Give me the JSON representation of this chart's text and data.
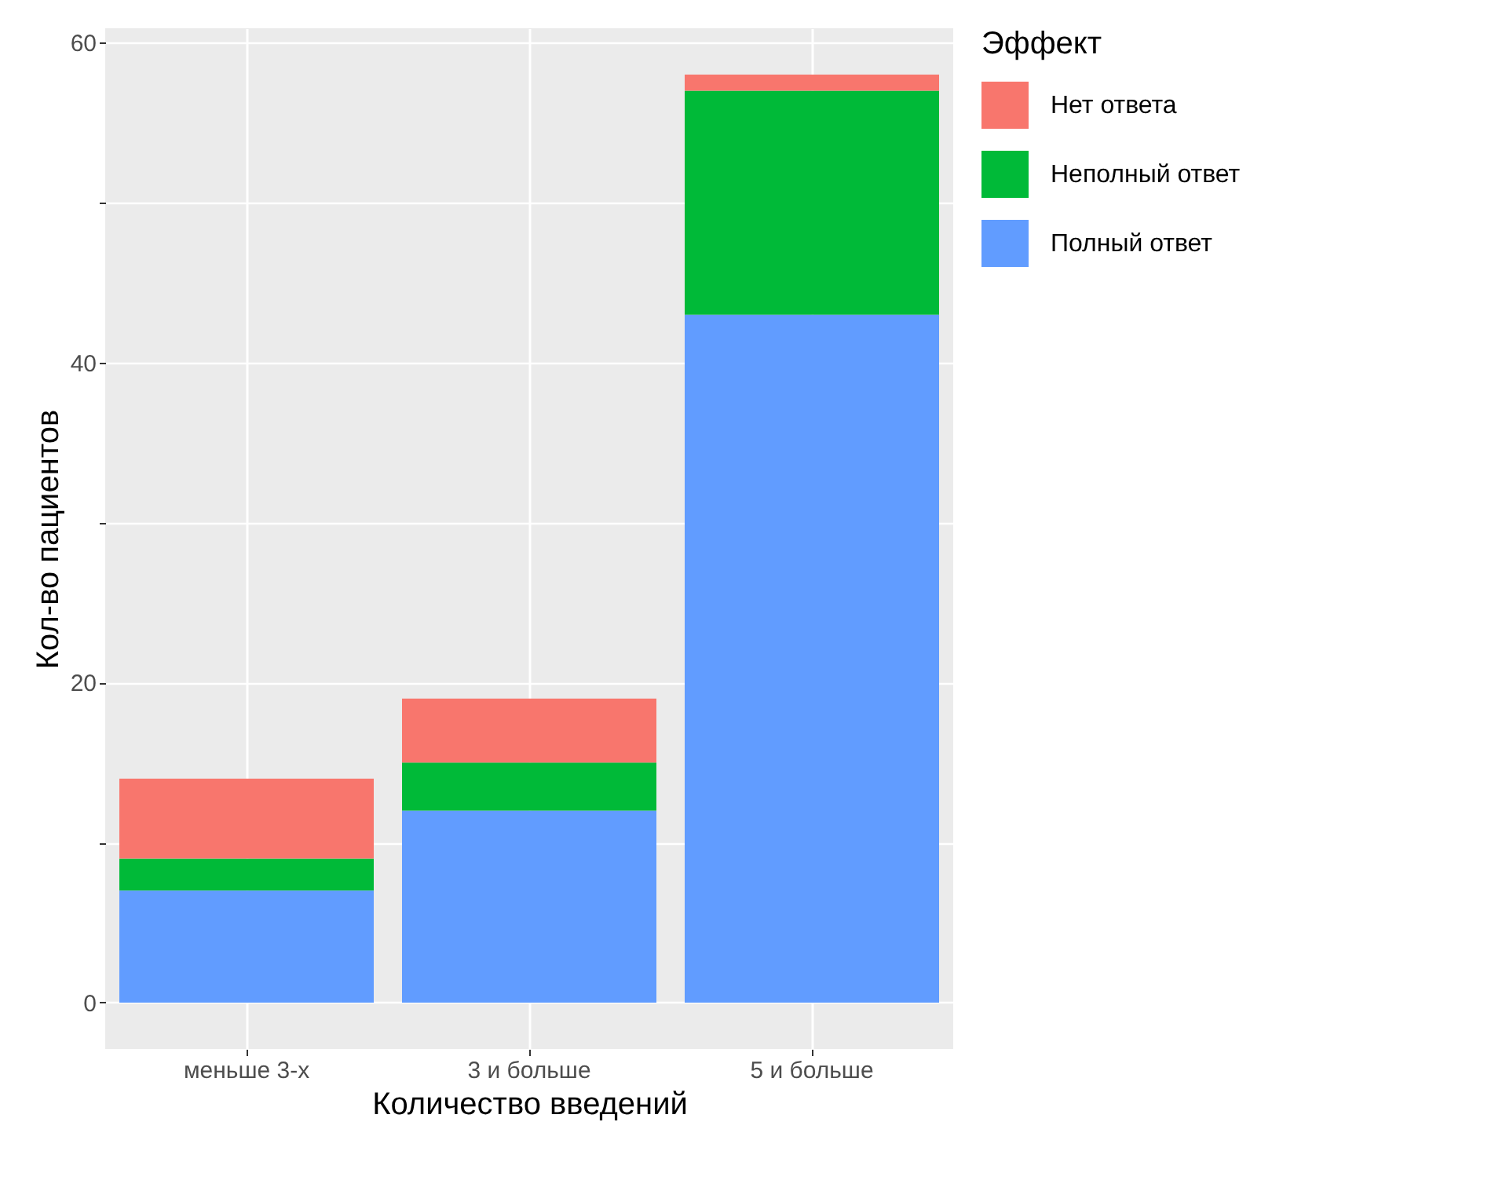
{
  "chart_data": {
    "type": "bar",
    "stacked": true,
    "xlabel": "Количество введений",
    "ylabel": "Кол-во пациентов",
    "legend_title": "Эффект",
    "categories": [
      "меньше 3-х",
      "3 и больше",
      "5 и больше"
    ],
    "series": [
      {
        "name": "Полный ответ",
        "color": "#619cff",
        "values": [
          7,
          12,
          43
        ]
      },
      {
        "name": "Неполный ответ",
        "color": "#00ba38",
        "values": [
          2,
          3,
          14
        ]
      },
      {
        "name": "Нет ответа",
        "color": "#f8766d",
        "values": [
          5,
          4,
          1
        ]
      }
    ],
    "ylim": [
      -2.9,
      60.9
    ],
    "yticks": [
      0,
      {
        "value": 10,
        "label": null
      },
      20,
      {
        "value": 30,
        "label": null
      },
      40,
      {
        "value": 50,
        "label": null
      },
      60
    ],
    "grid": true,
    "legend": "right"
  }
}
